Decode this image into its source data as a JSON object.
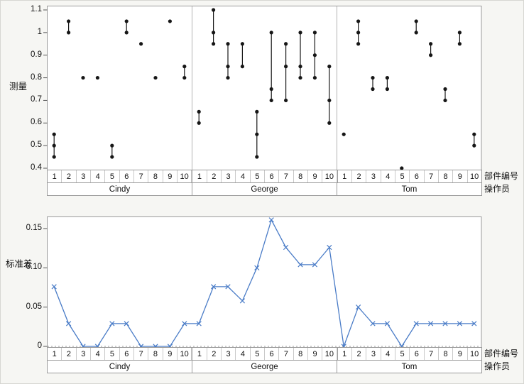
{
  "report": {
    "background_color": "#f6f6f3",
    "plot_background_color": "#ffffff",
    "frame_border_color": "#9b9b9b"
  },
  "top_chart": {
    "ylabel": "测量",
    "ytick_labels": [
      "1.1",
      "1",
      "0.9",
      "0.8",
      "0.7",
      "0.6",
      "0.5",
      "0.4"
    ]
  },
  "bottom_chart": {
    "ylabel": "标准差",
    "ytick_labels": [
      "0.15",
      "0.10",
      "0.05",
      "0"
    ]
  },
  "x_axis": {
    "part_numbers": [
      "1",
      "2",
      "3",
      "4",
      "5",
      "6",
      "7",
      "8",
      "9",
      "10"
    ],
    "operators": [
      "Cindy",
      "George",
      "Tom"
    ],
    "parts_axis_label": "部件编号",
    "operators_axis_label": "操作员"
  },
  "chart_data": [
    {
      "type": "scatter",
      "subtype": "variability-range-plot",
      "title": "",
      "ylabel": "测量",
      "ylim": [
        0.4,
        1.1
      ],
      "yticks": [
        1.1,
        1.0,
        0.9,
        0.8,
        0.7,
        0.6,
        0.5,
        0.4
      ],
      "x_parts": [
        1,
        2,
        3,
        4,
        5,
        6,
        7,
        8,
        9,
        10
      ],
      "operators": [
        "Cindy",
        "George",
        "Tom"
      ],
      "marker_color": "#161616",
      "range_bar": true,
      "measurements_by_operator": {
        "Cindy": [
          [
            0.45,
            0.5,
            0.55
          ],
          [
            1.0,
            1.05
          ],
          [
            0.8
          ],
          [
            0.8
          ],
          [
            0.45,
            0.5
          ],
          [
            1.0,
            1.05
          ],
          [
            0.95
          ],
          [
            0.8
          ],
          [
            1.05
          ],
          [
            0.8,
            0.85
          ]
        ],
        "George": [
          [
            0.6,
            0.65
          ],
          [
            0.95,
            1.0,
            1.1
          ],
          [
            0.8,
            0.85,
            0.95
          ],
          [
            0.85,
            0.95
          ],
          [
            0.45,
            0.55,
            0.65
          ],
          [
            0.7,
            0.75,
            1.0
          ],
          [
            0.7,
            0.85,
            0.95
          ],
          [
            0.8,
            0.85,
            1.0
          ],
          [
            0.8,
            0.9,
            1.0
          ],
          [
            0.6,
            0.7,
            0.85
          ]
        ],
        "Tom": [
          [
            0.55
          ],
          [
            0.95,
            1.0,
            1.05
          ],
          [
            0.75,
            0.8
          ],
          [
            0.75,
            0.8
          ],
          [
            0.4
          ],
          [
            1.0,
            1.05
          ],
          [
            0.9,
            0.95
          ],
          [
            0.7,
            0.75
          ],
          [
            0.95,
            1.0
          ],
          [
            0.5,
            0.55
          ]
        ]
      }
    },
    {
      "type": "line",
      "subtype": "std-dev-chart",
      "title": "",
      "ylabel": "标准差",
      "ylim": [
        0,
        0.165
      ],
      "yticks": [
        0.15,
        0.1,
        0.05,
        0
      ],
      "x_parts": [
        1,
        2,
        3,
        4,
        5,
        6,
        7,
        8,
        9,
        10
      ],
      "operators": [
        "Cindy",
        "George",
        "Tom"
      ],
      "line_color": "#4a7cc7",
      "marker": "x",
      "zero_reference_line": "dotted",
      "std_dev_by_operator": {
        "Cindy": [
          0.076,
          0.029,
          0,
          0,
          0.029,
          0.029,
          0,
          0,
          0,
          0.029
        ],
        "George": [
          0.029,
          0.076,
          0.076,
          0.058,
          0.1,
          0.161,
          0.126,
          0.104,
          0.104,
          0.126
        ],
        "Tom": [
          0,
          0.05,
          0.029,
          0.029,
          0,
          0.029,
          0.029,
          0.029,
          0.029,
          0.029
        ]
      }
    }
  ]
}
